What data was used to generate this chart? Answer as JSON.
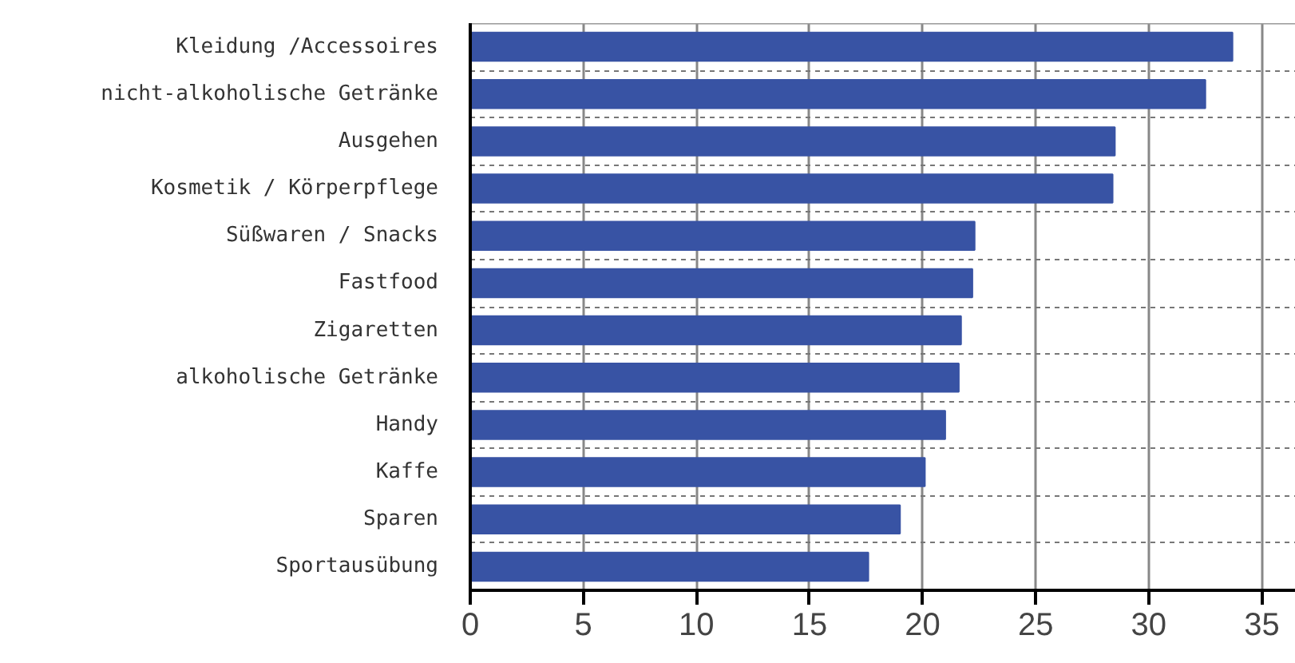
{
  "chart_data": {
    "type": "bar",
    "orientation": "horizontal",
    "categories": [
      "Kleidung /Accessoires",
      "nicht-alkoholische Getränke",
      "Ausgehen",
      "Kosmetik / Körperpflege",
      "Süßwaren / Snacks",
      "Fastfood",
      "Zigaretten",
      "alkoholische Getränke",
      "Handy",
      "Kaffe",
      "Sparen",
      "Sportausübung"
    ],
    "values": [
      33.7,
      32.5,
      28.5,
      28.4,
      22.3,
      22.2,
      21.7,
      21.6,
      21.0,
      20.1,
      19.0,
      17.6
    ],
    "color": "#3853a4",
    "xlim": [
      0,
      36.5
    ],
    "xticks": [
      0,
      5,
      10,
      15,
      20,
      25,
      30,
      35
    ],
    "grid": true
  }
}
